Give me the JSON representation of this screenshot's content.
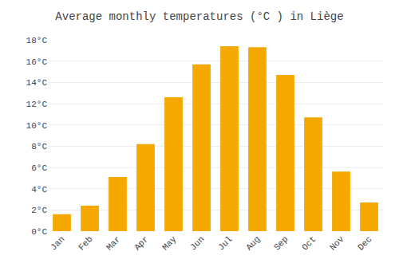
{
  "chart_data": {
    "type": "bar",
    "title": "Average monthly temperatures (°C ) in Liège",
    "categories": [
      "Jan",
      "Feb",
      "Mar",
      "Apr",
      "May",
      "Jun",
      "Jul",
      "Aug",
      "Sep",
      "Oct",
      "Nov",
      "Dec"
    ],
    "values": [
      1.6,
      2.4,
      5.1,
      8.2,
      12.6,
      15.7,
      17.4,
      17.3,
      14.7,
      10.7,
      5.6,
      2.7
    ],
    "color": "#F5A800",
    "ylim": [
      0,
      18
    ],
    "yticks": [
      {
        "value": 0,
        "label": "0°C"
      },
      {
        "value": 2,
        "label": "2°C"
      },
      {
        "value": 4,
        "label": "4°C"
      },
      {
        "value": 6,
        "label": "6°C"
      },
      {
        "value": 8,
        "label": "8°C"
      },
      {
        "value": 10,
        "label": "10°C"
      },
      {
        "value": 12,
        "label": "12°C"
      },
      {
        "value": 14,
        "label": "14°C"
      },
      {
        "value": 16,
        "label": "16°C"
      },
      {
        "value": 18,
        "label": "18°C"
      }
    ],
    "grid": true
  }
}
